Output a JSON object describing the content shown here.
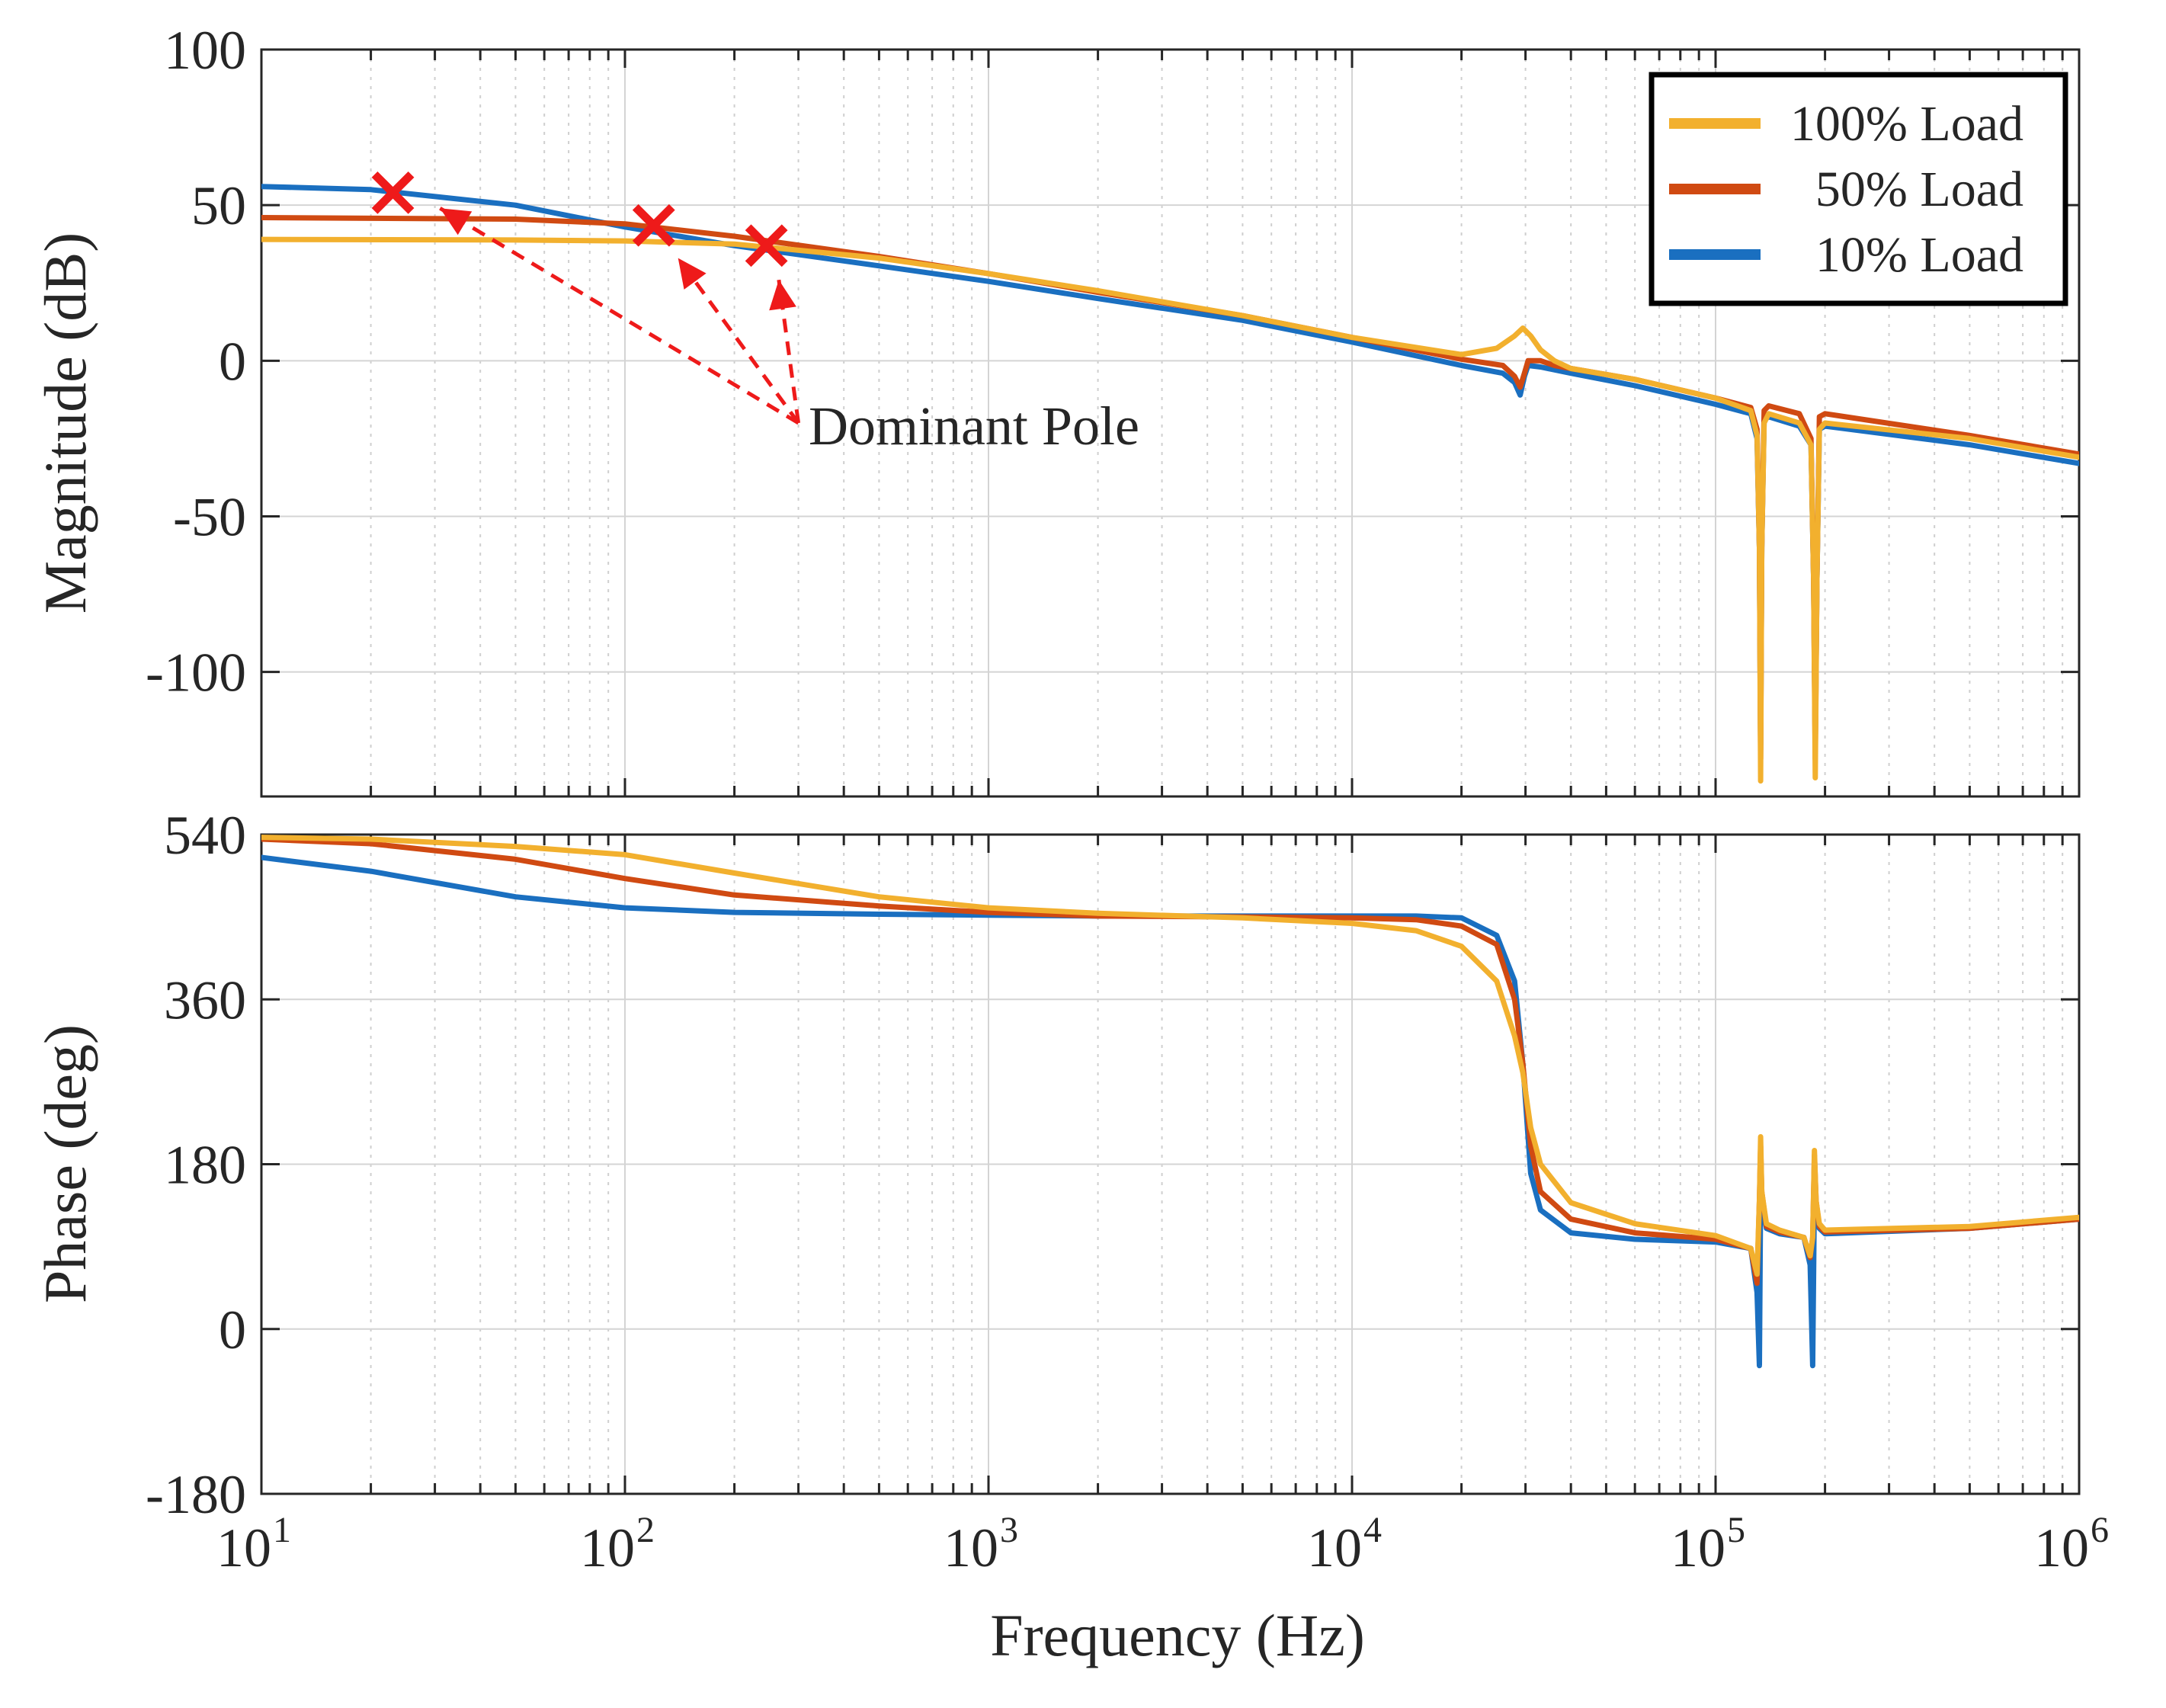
{
  "chart_data": [
    {
      "id": "magnitude",
      "type": "line",
      "xscale": "log",
      "xlim": [
        10,
        1000000
      ],
      "ylim": [
        -140,
        100
      ],
      "yticks": [
        100,
        50,
        0,
        -50,
        -100
      ],
      "ytick_labels": [
        "100",
        "50",
        "0",
        "-50",
        "-100"
      ],
      "ylabel": "Magnitude  (dB)",
      "grid": true,
      "legend": {
        "placement": "top-right",
        "entries": [
          "100% Load",
          " 50% Load",
          " 10% Load"
        ]
      },
      "series": [
        {
          "name": "100% Load",
          "color": "#F2B02E",
          "points": [
            [
              10,
              39
            ],
            [
              50,
              38.8
            ],
            [
              100,
              38.5
            ],
            [
              200,
              37.5
            ],
            [
              500,
              33
            ],
            [
              1000,
              28
            ],
            [
              2000,
              22.5
            ],
            [
              5000,
              14.5
            ],
            [
              10000,
              7.5
            ],
            [
              20000,
              2
            ],
            [
              25000,
              4
            ],
            [
              28000,
              8
            ],
            [
              29500,
              10.5
            ],
            [
              31000,
              8
            ],
            [
              33000,
              3.5
            ],
            [
              36000,
              0
            ],
            [
              40000,
              -2.5
            ],
            [
              60000,
              -6
            ],
            [
              100000,
              -12
            ],
            [
              125000,
              -16
            ],
            [
              130000,
              -24
            ],
            [
              132000,
              -60
            ],
            [
              133000,
              -135
            ],
            [
              134000,
              -60
            ],
            [
              136000,
              -20
            ],
            [
              140000,
              -17
            ],
            [
              170000,
              -20
            ],
            [
              183000,
              -27
            ],
            [
              186000,
              -70
            ],
            [
              188000,
              -134
            ],
            [
              190000,
              -70
            ],
            [
              193000,
              -22
            ],
            [
              200000,
              -20
            ],
            [
              500000,
              -25
            ],
            [
              1000000,
              -31
            ]
          ]
        },
        {
          "name": "50% Load",
          "color": "#D04A12",
          "points": [
            [
              10,
              46
            ],
            [
              50,
              45.5
            ],
            [
              100,
              44
            ],
            [
              200,
              40
            ],
            [
              500,
              33.5
            ],
            [
              1000,
              28
            ],
            [
              2000,
              22
            ],
            [
              5000,
              14.5
            ],
            [
              10000,
              7.5
            ],
            [
              20000,
              0.5
            ],
            [
              26000,
              -1.5
            ],
            [
              28000,
              -5
            ],
            [
              29000,
              -8.5
            ],
            [
              29800,
              -4
            ],
            [
              30500,
              0
            ],
            [
              33000,
              0
            ],
            [
              36000,
              -1.5
            ],
            [
              40000,
              -2.5
            ],
            [
              60000,
              -6
            ],
            [
              100000,
              -12
            ],
            [
              125000,
              -15
            ],
            [
              130000,
              -22
            ],
            [
              132000,
              -60
            ],
            [
              133000,
              -128
            ],
            [
              134000,
              -60
            ],
            [
              136000,
              -16
            ],
            [
              140000,
              -14.5
            ],
            [
              170000,
              -17
            ],
            [
              183000,
              -25
            ],
            [
              186000,
              -70
            ],
            [
              188000,
              -128
            ],
            [
              190000,
              -70
            ],
            [
              193000,
              -18
            ],
            [
              200000,
              -17
            ],
            [
              500000,
              -24
            ],
            [
              1000000,
              -30
            ]
          ]
        },
        {
          "name": "10% Load",
          "color": "#1A6FC0",
          "points": [
            [
              10,
              56
            ],
            [
              20,
              55
            ],
            [
              50,
              50
            ],
            [
              100,
              43
            ],
            [
              200,
              37
            ],
            [
              500,
              30.5
            ],
            [
              1000,
              25.5
            ],
            [
              2000,
              20
            ],
            [
              5000,
              13
            ],
            [
              10000,
              6
            ],
            [
              20000,
              -1.5
            ],
            [
              26000,
              -4
            ],
            [
              28000,
              -7
            ],
            [
              29000,
              -11
            ],
            [
              29800,
              -5
            ],
            [
              30500,
              -1.5
            ],
            [
              33000,
              -2
            ],
            [
              40000,
              -4
            ],
            [
              60000,
              -8
            ],
            [
              100000,
              -14
            ],
            [
              125000,
              -17
            ],
            [
              130000,
              -25
            ],
            [
              132000,
              -60
            ],
            [
              133000,
              -125
            ],
            [
              134000,
              -60
            ],
            [
              136000,
              -19
            ],
            [
              140000,
              -18
            ],
            [
              170000,
              -21
            ],
            [
              183000,
              -27
            ],
            [
              186000,
              -70
            ],
            [
              188000,
              -125
            ],
            [
              190000,
              -70
            ],
            [
              193000,
              -22
            ],
            [
              200000,
              -21
            ],
            [
              500000,
              -27
            ],
            [
              1000000,
              -33
            ]
          ]
        }
      ],
      "markers": [
        {
          "label": "dominant-pole-1",
          "x": 23,
          "y": 54
        },
        {
          "label": "dominant-pole-2",
          "x": 120,
          "y": 43.5
        },
        {
          "label": "dominant-pole-3",
          "x": 245,
          "y": 37
        }
      ],
      "annotation": {
        "text": "Dominant Pole",
        "x": 320,
        "y": -22,
        "arrow_targets": [
          {
            "x": 31,
            "y": 49
          },
          {
            "x": 140,
            "y": 33
          },
          {
            "x": 265,
            "y": 26
          }
        ],
        "arrow_start": [
          300,
          -20
        ],
        "color": "#EE1A1A"
      }
    },
    {
      "id": "phase",
      "type": "line",
      "xscale": "log",
      "xlim": [
        10,
        1000000
      ],
      "ylim": [
        -180,
        540
      ],
      "yticks": [
        540,
        360,
        180,
        0,
        -180
      ],
      "ytick_labels": [
        "540",
        "360",
        "180",
        "0",
        "-180"
      ],
      "xticks": [
        10,
        100,
        1000,
        10000,
        100000,
        1000000
      ],
      "xtick_bases": [
        "10",
        "10",
        "10",
        "10",
        "10",
        "10"
      ],
      "xtick_exponents": [
        "1",
        "2",
        "3",
        "4",
        "5",
        "6"
      ],
      "xlabel": "Frequency (Hz)",
      "ylabel": "Phase (deg)",
      "grid": true,
      "series": [
        {
          "name": "100% Load",
          "color": "#F2B02E",
          "points": [
            [
              10,
              537
            ],
            [
              20,
              535
            ],
            [
              50,
              527
            ],
            [
              100,
              518
            ],
            [
              200,
              498
            ],
            [
              500,
              472
            ],
            [
              1000,
              460
            ],
            [
              2000,
              454
            ],
            [
              5000,
              449
            ],
            [
              10000,
              443
            ],
            [
              15000,
              435
            ],
            [
              20000,
              418
            ],
            [
              25000,
              380
            ],
            [
              28000,
              320
            ],
            [
              29500,
              280
            ],
            [
              31000,
              220
            ],
            [
              33000,
              180
            ],
            [
              40000,
              138
            ],
            [
              60000,
              115
            ],
            [
              100000,
              102
            ],
            [
              125000,
              88
            ],
            [
              130000,
              60
            ],
            [
              132000,
              140
            ],
            [
              133000,
              210
            ],
            [
              134000,
              150
            ],
            [
              138000,
              115
            ],
            [
              150000,
              108
            ],
            [
              175000,
              100
            ],
            [
              182000,
              80
            ],
            [
              185000,
              100
            ],
            [
              187000,
              195
            ],
            [
              189000,
              140
            ],
            [
              193000,
              115
            ],
            [
              200000,
              108
            ],
            [
              500000,
              112
            ],
            [
              1000000,
              122
            ]
          ]
        },
        {
          "name": "50% Load",
          "color": "#D04A12",
          "points": [
            [
              10,
              535
            ],
            [
              20,
              530
            ],
            [
              50,
              513
            ],
            [
              100,
              492
            ],
            [
              200,
              474
            ],
            [
              500,
              462
            ],
            [
              1000,
              455
            ],
            [
              2000,
              451
            ],
            [
              5000,
              450
            ],
            [
              10000,
              449
            ],
            [
              15000,
              447
            ],
            [
              20000,
              440
            ],
            [
              25000,
              420
            ],
            [
              28000,
              360
            ],
            [
              29500,
              290
            ],
            [
              31000,
              200
            ],
            [
              33000,
              150
            ],
            [
              40000,
              120
            ],
            [
              60000,
              105
            ],
            [
              100000,
              98
            ],
            [
              125000,
              88
            ],
            [
              130000,
              50
            ],
            [
              132000,
              140
            ],
            [
              133000,
              200
            ],
            [
              134000,
              150
            ],
            [
              138000,
              112
            ],
            [
              150000,
              106
            ],
            [
              175000,
              100
            ],
            [
              182000,
              78
            ],
            [
              185000,
              100
            ],
            [
              187000,
              190
            ],
            [
              189000,
              140
            ],
            [
              193000,
              112
            ],
            [
              200000,
              106
            ],
            [
              500000,
              110
            ],
            [
              1000000,
              120
            ]
          ]
        },
        {
          "name": "10% Load",
          "color": "#1A6FC0",
          "points": [
            [
              10,
              515
            ],
            [
              20,
              500
            ],
            [
              50,
              472
            ],
            [
              100,
              460
            ],
            [
              200,
              455
            ],
            [
              500,
              453
            ],
            [
              1000,
              452
            ],
            [
              2000,
              451
            ],
            [
              5000,
              451
            ],
            [
              10000,
              451
            ],
            [
              15000,
              451
            ],
            [
              20000,
              449
            ],
            [
              25000,
              430
            ],
            [
              28000,
              380
            ],
            [
              29500,
              290
            ],
            [
              31000,
              170
            ],
            [
              33000,
              130
            ],
            [
              40000,
              105
            ],
            [
              60000,
              98
            ],
            [
              100000,
              95
            ],
            [
              125000,
              88
            ],
            [
              130000,
              40
            ],
            [
              132000,
              -40
            ],
            [
              133000,
              150
            ],
            [
              134000,
              140
            ],
            [
              138000,
              110
            ],
            [
              150000,
              104
            ],
            [
              175000,
              100
            ],
            [
              182000,
              70
            ],
            [
              185000,
              -40
            ],
            [
              187000,
              150
            ],
            [
              189000,
              130
            ],
            [
              193000,
              110
            ],
            [
              200000,
              104
            ],
            [
              500000,
              110
            ],
            [
              1000000,
              120
            ]
          ]
        }
      ]
    }
  ]
}
